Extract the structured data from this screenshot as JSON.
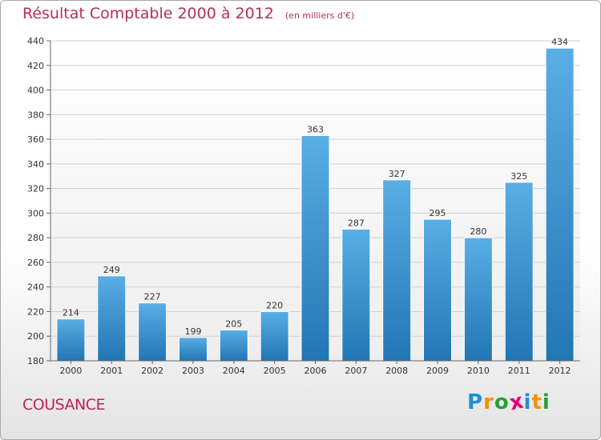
{
  "chart_data": {
    "type": "bar",
    "title": "Résultat Comptable 2000 à 2012",
    "subtitle": "(en milliers d'€)",
    "categories": [
      "2000",
      "2001",
      "2002",
      "2003",
      "2004",
      "2005",
      "2006",
      "2007",
      "2008",
      "2009",
      "2010",
      "2011",
      "2012"
    ],
    "values": [
      214,
      249,
      227,
      199,
      205,
      220,
      363,
      287,
      327,
      295,
      280,
      325,
      434
    ],
    "ylim": [
      180,
      440
    ],
    "yticks": [
      180,
      200,
      220,
      240,
      260,
      280,
      300,
      320,
      340,
      360,
      380,
      400,
      420,
      440
    ],
    "grid": true,
    "xlabel": "",
    "ylabel": ""
  },
  "location": "COUSANCE",
  "brand": {
    "letters": [
      "P",
      "r",
      "o",
      "x",
      "i",
      "t",
      "i"
    ],
    "colors": [
      "#1f8fd6",
      "#f39200",
      "#2d9c3c",
      "#e2007a",
      "#1f8fd6",
      "#f39200",
      "#2d9c3c"
    ]
  },
  "colors": {
    "bar_top": "#5aaee6",
    "bar_bottom": "#2176b4",
    "title": "#b5314f"
  }
}
